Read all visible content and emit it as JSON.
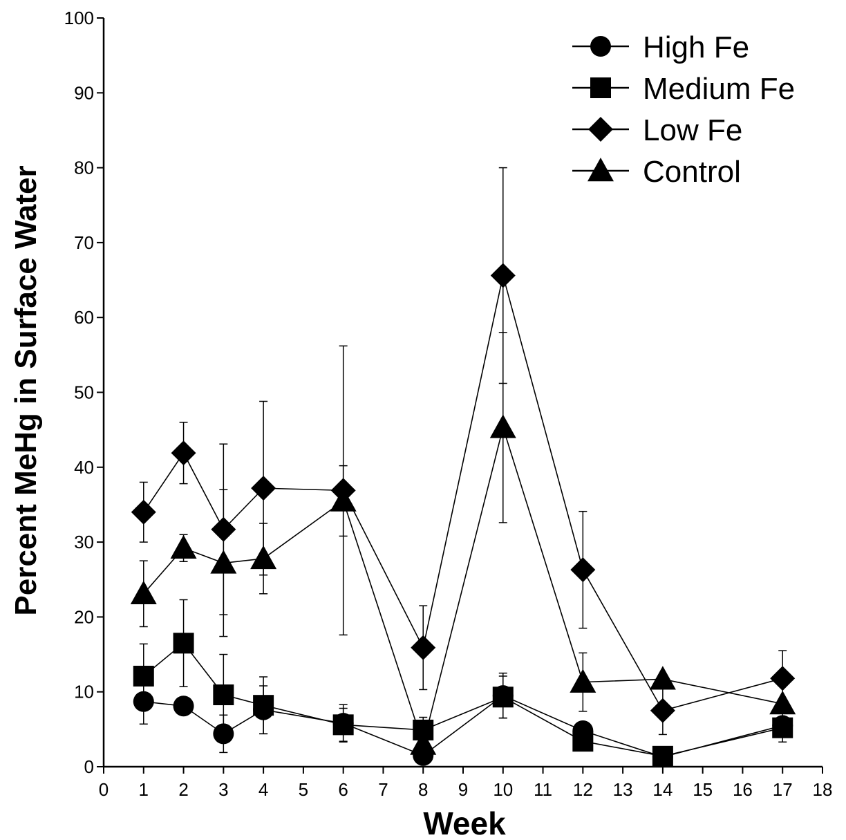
{
  "chart_data": {
    "type": "line",
    "xlabel": "Week",
    "ylabel": "Percent MeHg in Surface Water",
    "xlim": [
      0,
      18
    ],
    "ylim": [
      0,
      100
    ],
    "xticks": [
      "0",
      "1",
      "2",
      "3",
      "4",
      "5",
      "6",
      "7",
      "8",
      "9",
      "10",
      "11",
      "12",
      "13",
      "14",
      "15",
      "16",
      "17",
      "18"
    ],
    "yticks": [
      "0",
      "10",
      "20",
      "30",
      "40",
      "50",
      "60",
      "70",
      "80",
      "90",
      "100"
    ],
    "grid": false,
    "legend_position": "top-right",
    "series": [
      {
        "name": "High Fe",
        "marker": "circle",
        "x": [
          1,
          2,
          3,
          4,
          6,
          8,
          10,
          12,
          14,
          17
        ],
        "y": [
          8.7,
          8.1,
          4.4,
          7.6,
          5.8,
          1.5,
          9.5,
          4.8,
          1.3,
          5.5
        ],
        "err": [
          3.0,
          0,
          2.5,
          3.2,
          2.5,
          0,
          3.0,
          0,
          0,
          2.2
        ]
      },
      {
        "name": "Medium Fe",
        "marker": "square",
        "x": [
          1,
          2,
          3,
          4,
          6,
          8,
          10,
          12,
          14,
          17
        ],
        "y": [
          12.1,
          16.5,
          9.6,
          8.2,
          5.6,
          4.9,
          9.3,
          3.4,
          1.4,
          5.2
        ],
        "err": [
          4.3,
          5.8,
          5.4,
          3.8,
          2.2,
          1.7,
          2.8,
          0,
          0,
          0
        ]
      },
      {
        "name": "Low Fe",
        "marker": "diamond",
        "x": [
          1,
          2,
          3,
          4,
          6,
          8,
          10,
          12,
          14,
          17
        ],
        "y": [
          34.0,
          41.9,
          31.7,
          37.2,
          36.9,
          15.9,
          65.6,
          26.3,
          7.5,
          11.8
        ],
        "err": [
          4.0,
          4.1,
          11.4,
          11.6,
          19.3,
          5.6,
          14.4,
          7.8,
          3.2,
          3.7
        ]
      },
      {
        "name": "Control",
        "marker": "triangle",
        "x": [
          1,
          2,
          3,
          4,
          6,
          8,
          10,
          12,
          14,
          17
        ],
        "y": [
          23.1,
          29.2,
          27.2,
          27.8,
          35.5,
          3.0,
          45.3,
          11.3,
          11.7,
          8.4
        ],
        "err": [
          4.4,
          1.8,
          9.8,
          4.7,
          4.7,
          0,
          12.7,
          3.9,
          0,
          0
        ]
      }
    ]
  }
}
